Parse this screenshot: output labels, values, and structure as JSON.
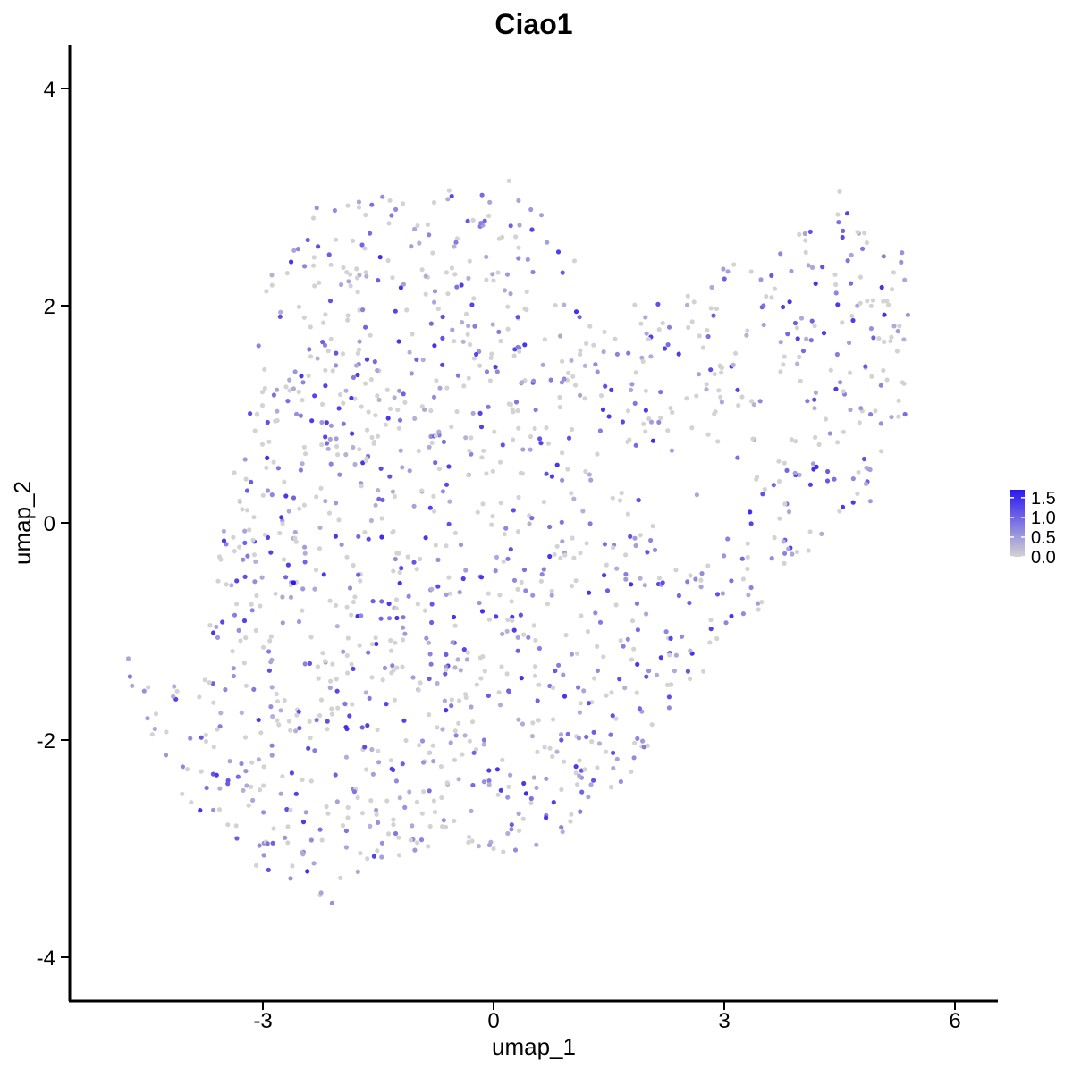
{
  "chart_data": {
    "type": "scatter",
    "title": "Ciao1",
    "xlabel": "umap_1",
    "ylabel": "umap_2",
    "xlim": [
      -5.9,
      6.6
    ],
    "ylim": [
      -4.4,
      4.4
    ],
    "x_ticks": [
      -3,
      0,
      3,
      6
    ],
    "y_ticks": [
      -4,
      -2,
      0,
      2,
      4
    ],
    "x_tick_labels": [
      "-3",
      "0",
      "3",
      "6"
    ],
    "y_tick_labels": [
      "-4",
      "-2",
      "0",
      "2",
      "4"
    ],
    "grid": false,
    "legend": {
      "placement": "right",
      "type": "colorbar",
      "min": 0.0,
      "max": 1.7,
      "ticks": [
        0.0,
        0.5,
        1.0,
        1.5
      ],
      "tick_labels": [
        "0.0",
        "0.5",
        "1.0",
        "1.5"
      ]
    },
    "colors": {
      "low": "#d3d3d3",
      "high": "#2a18f0"
    },
    "point_count": 1500,
    "sample_points": [
      {
        "x": -4.75,
        "y": -1.25,
        "value": 0.4
      },
      {
        "x": -4.7,
        "y": -1.5,
        "value": 0.4
      },
      {
        "x": -4.5,
        "y": -1.8,
        "value": 0.5
      },
      {
        "x": -2.6,
        "y": -0.55,
        "value": 1.7
      },
      {
        "x": -1.85,
        "y": 1.15,
        "value": 1.4
      },
      {
        "x": -2.3,
        "y": 2.9,
        "value": 0.6
      },
      {
        "x": -2.1,
        "y": -3.5,
        "value": 0.6
      },
      {
        "x": 0.2,
        "y": 3.15,
        "value": 0.0
      },
      {
        "x": 0.0,
        "y": -3.0,
        "value": 0.0
      },
      {
        "x": 2.2,
        "y": -0.55,
        "value": 1.2
      },
      {
        "x": 4.5,
        "y": 3.05,
        "value": 0.0
      },
      {
        "x": 4.6,
        "y": 2.85,
        "value": 1.3
      },
      {
        "x": 5.3,
        "y": 2.4,
        "value": 0.6
      },
      {
        "x": 5.35,
        "y": 1.0,
        "value": 0.9
      },
      {
        "x": 4.9,
        "y": 0.2,
        "value": 0.5
      },
      {
        "x": 1.0,
        "y": -2.75,
        "value": 0.0
      }
    ]
  }
}
